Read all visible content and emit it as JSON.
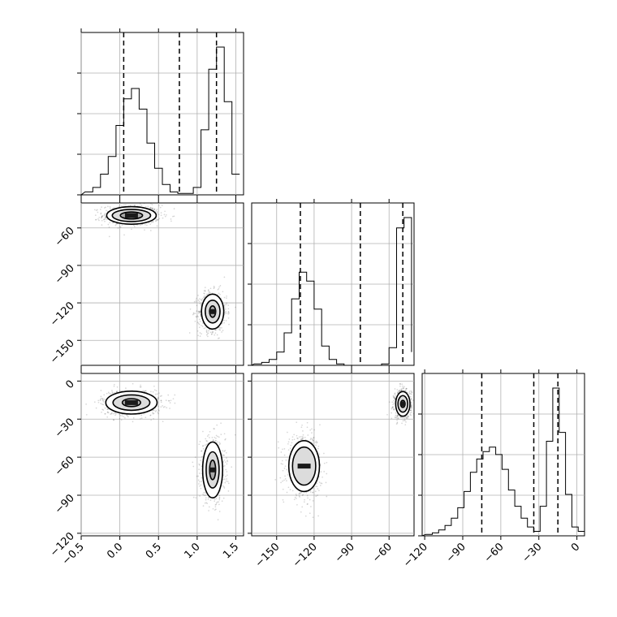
{
  "chart_data": {
    "type": "corner",
    "parameters": [
      "",
      "",
      ""
    ],
    "axes": {
      "p0": {
        "range": [
          -0.5,
          1.6
        ],
        "ticks": [
          -0.5,
          0.0,
          0.5,
          1.0,
          1.5
        ],
        "tick_labels": [
          "−0.5",
          "0.0",
          "0.5",
          "1.0",
          "1.5"
        ]
      },
      "p1": {
        "range": [
          -170,
          -40
        ],
        "ticks": [
          -150,
          -120,
          -90,
          -60
        ],
        "tick_labels": [
          "−150",
          "−120",
          "−90",
          "−60"
        ]
      },
      "p2": {
        "range": [
          -122,
          6
        ],
        "ticks": [
          -120,
          -90,
          -60,
          -30,
          0
        ],
        "tick_labels": [
          "−120",
          "−90",
          "−60",
          "−30",
          "0"
        ]
      }
    },
    "grid": true,
    "histograms": [
      {
        "param": "p0",
        "bin_edges": [
          -0.45,
          -0.35,
          -0.25,
          -0.15,
          -0.05,
          0.05,
          0.15,
          0.25,
          0.35,
          0.45,
          0.55,
          0.65,
          0.75,
          0.85,
          0.95,
          1.05,
          1.15,
          1.25,
          1.35,
          1.45,
          1.55
        ],
        "counts": [
          0.02,
          0.05,
          0.14,
          0.26,
          0.47,
          0.65,
          0.72,
          0.58,
          0.35,
          0.18,
          0.07,
          0.02,
          0.01,
          0.01,
          0.05,
          0.44,
          0.85,
          1.0,
          0.63,
          0.14
        ],
        "quantiles": [
          0.05,
          0.77,
          1.25
        ]
      },
      {
        "param": "p1",
        "bin_edges": [
          -168,
          -162,
          -156,
          -150,
          -144,
          -138,
          -132,
          -126,
          -120,
          -114,
          -108,
          -102,
          -96,
          -90,
          -84,
          -78,
          -72,
          -66,
          -60,
          -54,
          -48,
          -42
        ],
        "counts": [
          0.01,
          0.02,
          0.04,
          0.09,
          0.22,
          0.45,
          0.63,
          0.57,
          0.38,
          0.13,
          0.04,
          0.01,
          0.0,
          0.0,
          0.0,
          0.0,
          0.0,
          0.01,
          0.12,
          0.93,
          1.0,
          0.09
        ],
        "quantiles": [
          -131,
          -83,
          -49
        ]
      },
      {
        "param": "p2",
        "bin_edges": [
          -119,
          -114,
          -109,
          -104,
          -99,
          -94,
          -89,
          -84,
          -79,
          -74,
          -69,
          -64,
          -59,
          -54,
          -49,
          -44,
          -39,
          -34,
          -29,
          -24,
          -19,
          -14,
          -9,
          -4,
          1,
          6
        ],
        "counts": [
          0.01,
          0.02,
          0.04,
          0.07,
          0.12,
          0.19,
          0.3,
          0.43,
          0.52,
          0.57,
          0.6,
          0.55,
          0.45,
          0.31,
          0.2,
          0.12,
          0.06,
          0.03,
          0.2,
          0.64,
          1.0,
          0.7,
          0.28,
          0.06,
          0.03
        ],
        "quantiles": [
          -75,
          -34,
          -15
        ]
      }
    ],
    "scatter_panels": [
      {
        "x": "p0",
        "y": "p1",
        "modes": [
          {
            "center": [
              0.15,
              -50
            ],
            "sd": [
              0.16,
              3.5
            ],
            "weight": 0.5,
            "contours": [
              [
                0.9,
                0.8
              ],
              [
                1.55,
                1.4
              ],
              [
                2.0,
                2.0
              ]
            ]
          },
          {
            "center": [
              1.2,
              -127
            ],
            "sd": [
              0.08,
              7
            ],
            "weight": 0.5,
            "contours": [
              [
                0.5,
                0.65
              ],
              [
                1.2,
                1.3
              ],
              [
                1.8,
                2.0
              ]
            ]
          }
        ]
      },
      {
        "x": "p0",
        "y": "p2",
        "modes": [
          {
            "center": [
              0.15,
              -17
            ],
            "sd": [
              0.17,
              4.5
            ],
            "weight": 0.5,
            "contours": [
              [
                0.7,
                0.7
              ],
              [
                1.4,
                1.35
              ],
              [
                1.95,
                2.0
              ]
            ]
          },
          {
            "center": [
              1.2,
              -70
            ],
            "sd": [
              0.07,
              11
            ],
            "weight": 0.5,
            "contours": [
              [
                0.55,
                0.7
              ],
              [
                1.2,
                1.3
              ],
              [
                1.85,
                2.0
              ]
            ]
          }
        ]
      },
      {
        "x": "p1",
        "y": "p2",
        "modes": [
          {
            "center": [
              -128,
              -67
            ],
            "sd": [
              6,
              10
            ],
            "weight": 0.5,
            "contours": [
              [
                1.55,
                1.5
              ],
              [
                2.05,
                2.0
              ]
            ]
          },
          {
            "center": [
              -49,
              -18
            ],
            "sd": [
              3,
              5
            ],
            "weight": 0.5,
            "contours": [
              [
                0.6,
                0.55
              ],
              [
                1.3,
                1.3
              ],
              [
                1.9,
                1.95
              ]
            ]
          }
        ]
      }
    ]
  }
}
